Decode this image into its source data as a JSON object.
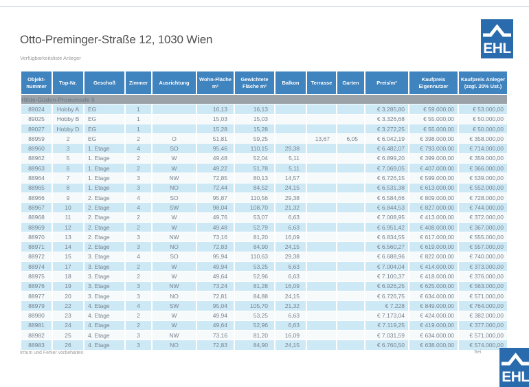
{
  "page": {
    "title": "Otto-Preminger-Straße 12, 1030 Wien",
    "subtitle": "Verfügbarkeitsliste Anleger",
    "footer_note": "Irrtum und Fehler vorbehalten.",
    "page_label": "Sei"
  },
  "logo": {
    "text": "EHL",
    "color": "#2a6bad"
  },
  "colors": {
    "header_bg": "#3f83bf",
    "section_bg": "#9ba2a8",
    "row_highlight": "#cee9f6",
    "row_plain": "#f7fafb",
    "table_text": "#75828d"
  },
  "table": {
    "section_label": "Hilde-Güden-Promenade 5",
    "columns": [
      {
        "key": "objektnummer",
        "label": "Objekt-nummer",
        "align": "center"
      },
      {
        "key": "top_nr",
        "label": "Top-Nr.",
        "align": "center"
      },
      {
        "key": "geschoss",
        "label": "Geschoß",
        "align": "left"
      },
      {
        "key": "zimmer",
        "label": "Zimmer",
        "align": "center"
      },
      {
        "key": "ausrichtung",
        "label": "Ausrichtung",
        "align": "center"
      },
      {
        "key": "wohnflaeche",
        "label": "Wohn-Fläche m²",
        "align": "num"
      },
      {
        "key": "gewichtete_flaeche",
        "label": "Gewichtete Fläche m²",
        "align": "num"
      },
      {
        "key": "balkon",
        "label": "Balkon",
        "align": "num"
      },
      {
        "key": "terrasse",
        "label": "Terrasse",
        "align": "num"
      },
      {
        "key": "garten",
        "label": "Garten",
        "align": "num"
      },
      {
        "key": "preis_m2",
        "label": "Preis/m²",
        "align": "cur"
      },
      {
        "key": "kaufpreis_eigennutzer",
        "label": "Kaufpreis Eigennutzer",
        "align": "cur"
      },
      {
        "key": "kaufpreis_anleger",
        "label": "Kaufpreis Anleger (zzgl. 20% Ust.)",
        "align": "cur"
      }
    ],
    "rows": [
      [
        "89024",
        "Hobby A",
        "EG",
        "1",
        "",
        "16,13",
        "16,13",
        "",
        "",
        "",
        "€ 3.285,80",
        "€ 59.000,00",
        "€ 53.000,00"
      ],
      [
        "89025",
        "Hobby B",
        "EG",
        "1",
        "",
        "15,03",
        "15,03",
        "",
        "",
        "",
        "€ 3.326,68",
        "€ 55.000,00",
        "€ 50.000,00"
      ],
      [
        "89027",
        "Hobby D",
        "EG",
        "1",
        "",
        "15,28",
        "15,28",
        "",
        "",
        "",
        "€ 3.272,25",
        "€ 55.000,00",
        "€ 50.000,00"
      ],
      [
        "88959",
        "2",
        "EG",
        "2",
        "O",
        "51,81",
        "59,25",
        "",
        "13,67",
        "6,05",
        "€ 6.042,19",
        "€ 398.000,00",
        "€ 358.000,00"
      ],
      [
        "88960",
        "3",
        "1. Etage",
        "4",
        "SO",
        "95,46",
        "110,15",
        "29,38",
        "",
        "",
        "€ 6.482,07",
        "€ 793.000,00",
        "€ 714.000,00"
      ],
      [
        "88962",
        "5",
        "1. Etage",
        "2",
        "W",
        "49,48",
        "52,04",
        "5,11",
        "",
        "",
        "€ 6.899,20",
        "€ 399.000,00",
        "€ 359.000,00"
      ],
      [
        "88963",
        "6",
        "1. Etage",
        "2",
        "W",
        "49,22",
        "51,78",
        "5,11",
        "",
        "",
        "€ 7.069,05",
        "€ 407.000,00",
        "€ 366.000,00"
      ],
      [
        "88964",
        "7",
        "1. Etage",
        "3",
        "NW",
        "72,85",
        "80,13",
        "14,57",
        "",
        "",
        "€ 6.726,15",
        "€ 599.000,00",
        "€ 539.000,00"
      ],
      [
        "88965",
        "8",
        "1. Etage",
        "3",
        "NO",
        "72,44",
        "84,52",
        "24,15",
        "",
        "",
        "€ 6.531,38",
        "€ 613.000,00",
        "€ 552.000,00"
      ],
      [
        "88966",
        "9",
        "2. Etage",
        "4",
        "SO",
        "95,87",
        "110,56",
        "29,38",
        "",
        "",
        "€ 6.584,66",
        "€ 809.000,00",
        "€ 728.000,00"
      ],
      [
        "88967",
        "10",
        "2. Etage",
        "4",
        "SW",
        "98,04",
        "108,70",
        "21,32",
        "",
        "",
        "€ 6.844,53",
        "€ 827.000,00",
        "€ 744.000,00"
      ],
      [
        "88968",
        "11",
        "2. Etage",
        "2",
        "W",
        "49,76",
        "53,07",
        "6,63",
        "",
        "",
        "€ 7.008,95",
        "€ 413.000,00",
        "€ 372.000,00"
      ],
      [
        "88969",
        "12",
        "2. Etage",
        "2",
        "W",
        "49,48",
        "52,79",
        "6,63",
        "",
        "",
        "€ 6.951,42",
        "€ 408.000,00",
        "€ 367.000,00"
      ],
      [
        "88970",
        "13",
        "2. Etage",
        "3",
        "NW",
        "73,16",
        "81,20",
        "16,09",
        "",
        "",
        "€ 6.834,55",
        "€ 617.000,00",
        "€ 555.000,00"
      ],
      [
        "88971",
        "14",
        "2. Etage",
        "3",
        "NO",
        "72,83",
        "84,90",
        "24,15",
        "",
        "",
        "€ 6.560,27",
        "€ 619.000,00",
        "€ 557.000,00"
      ],
      [
        "88972",
        "15",
        "3. Etage",
        "4",
        "SO",
        "95,94",
        "110,63",
        "29,38",
        "",
        "",
        "€ 6.688,96",
        "€ 822.000,00",
        "€ 740.000,00"
      ],
      [
        "88974",
        "17",
        "3. Etage",
        "2",
        "W",
        "49,94",
        "53,25",
        "6,63",
        "",
        "",
        "€ 7.004,04",
        "€ 414.000,00",
        "€ 373.000,00"
      ],
      [
        "88975",
        "18",
        "3. Etage",
        "2",
        "W",
        "49,64",
        "52,96",
        "6,63",
        "",
        "",
        "€ 7.100,37",
        "€ 418.000,00",
        "€ 376.000,00"
      ],
      [
        "88976",
        "19",
        "3. Etage",
        "3",
        "NW",
        "73,24",
        "81,28",
        "16,09",
        "",
        "",
        "€ 6.926,25",
        "€ 625.000,00",
        "€ 563.000,00"
      ],
      [
        "88977",
        "20",
        "3. Etage",
        "3",
        "NO",
        "72,81",
        "84,88",
        "24,15",
        "",
        "",
        "€ 6.726,75",
        "€ 634.000,00",
        "€ 571.000,00"
      ],
      [
        "88979",
        "22",
        "4. Etage",
        "4",
        "SW",
        "95,04",
        "105,70",
        "21,32",
        "",
        "",
        "€ 7.228",
        "€ 849.000,00",
        "€ 764.000,00"
      ],
      [
        "88980",
        "23",
        "4. Etage",
        "2",
        "W",
        "49,94",
        "53,25",
        "6,63",
        "",
        "",
        "€ 7.173,04",
        "€ 424.000,00",
        "€ 382.000,00"
      ],
      [
        "88981",
        "24",
        "4. Etage",
        "2",
        "W",
        "49,64",
        "52,96",
        "6,63",
        "",
        "",
        "€ 7.119,25",
        "€ 419.000,00",
        "€ 377.000,00"
      ],
      [
        "88982",
        "25",
        "4. Etage",
        "3",
        "NW",
        "73,16",
        "81,20",
        "16,09",
        "",
        "",
        "€ 7.031,59",
        "€ 634.000,00",
        "€ 571.000,00"
      ],
      [
        "88983",
        "26",
        "4. Etage",
        "3",
        "NO",
        "72,83",
        "84,90",
        "24,15",
        "",
        "",
        "€ 6.760,50",
        "€ 638.000,00",
        "€ 574.000,00"
      ]
    ]
  }
}
